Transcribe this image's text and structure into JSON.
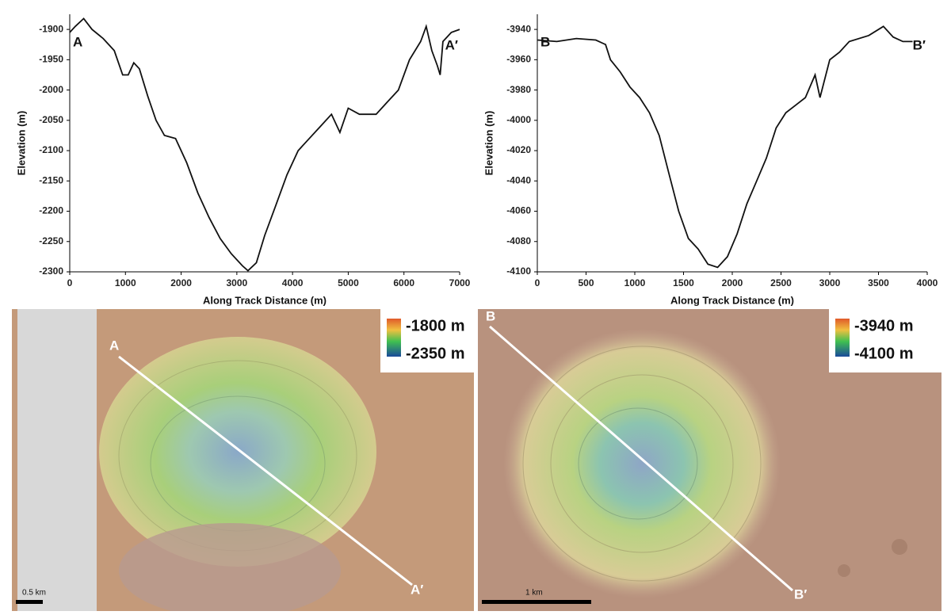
{
  "chart_data": [
    {
      "type": "line",
      "x_label": "Along Track Distance (m)",
      "y_label": "Elevation (m)",
      "annotations": [
        "A",
        "A′"
      ],
      "xlim": [
        0,
        7000
      ],
      "xticks": [
        0,
        1000,
        2000,
        3000,
        4000,
        5000,
        6000,
        7000
      ],
      "ylim": [
        -2300,
        -1875
      ],
      "yticks": [
        -2300,
        -2250,
        -2200,
        -2150,
        -2100,
        -2050,
        -2000,
        -1950,
        -1900
      ],
      "x": [
        0,
        100,
        250,
        400,
        600,
        800,
        950,
        1050,
        1150,
        1250,
        1400,
        1550,
        1700,
        1900,
        2100,
        2300,
        2500,
        2700,
        2900,
        3100,
        3200,
        3350,
        3500,
        3700,
        3900,
        4100,
        4300,
        4500,
        4700,
        4850,
        5000,
        5200,
        5500,
        5700,
        5900,
        6100,
        6300,
        6400,
        6500,
        6600,
        6650,
        6700,
        6850,
        7000
      ],
      "series": [
        {
          "color": "#111111",
          "values": [
            -1905,
            -1895,
            -1882,
            -1900,
            -1915,
            -1935,
            -1975,
            -1975,
            -1955,
            -1965,
            -2010,
            -2050,
            -2075,
            -2080,
            -2120,
            -2170,
            -2210,
            -2245,
            -2270,
            -2290,
            -2298,
            -2285,
            -2240,
            -2190,
            -2140,
            -2100,
            -2080,
            -2060,
            -2040,
            -2070,
            -2030,
            -2040,
            -2040,
            -2020,
            -2000,
            -1950,
            -1920,
            -1895,
            -1935,
            -1960,
            -1975,
            -1920,
            -1905,
            -1900
          ]
        }
      ]
    },
    {
      "type": "line",
      "x_label": "Along Track Distance (m)",
      "y_label": "Elevation (m)",
      "annotations": [
        "B",
        "B′"
      ],
      "xlim": [
        0,
        4000
      ],
      "xticks": [
        0,
        500,
        1000,
        1500,
        2000,
        2500,
        3000,
        3500,
        4000
      ],
      "ylim": [
        -4100,
        -3930
      ],
      "yticks": [
        -4100,
        -4080,
        -4060,
        -4040,
        -4020,
        -4000,
        -3980,
        -3960,
        -3940
      ],
      "x": [
        0,
        200,
        400,
        600,
        700,
        750,
        850,
        950,
        1050,
        1150,
        1250,
        1350,
        1450,
        1550,
        1650,
        1750,
        1850,
        1950,
        2050,
        2150,
        2250,
        2350,
        2450,
        2550,
        2650,
        2750,
        2850,
        2900,
        3000,
        3100,
        3200,
        3400,
        3550,
        3650,
        3750,
        3850
      ],
      "series": [
        {
          "color": "#111111",
          "values": [
            -3947,
            -3948,
            -3946,
            -3947,
            -3950,
            -3960,
            -3968,
            -3978,
            -3985,
            -3995,
            -4010,
            -4035,
            -4060,
            -4078,
            -4085,
            -4095,
            -4097,
            -4090,
            -4075,
            -4055,
            -4040,
            -4025,
            -4005,
            -3995,
            -3990,
            -3985,
            -3970,
            -3985,
            -3960,
            -3955,
            -3948,
            -3944,
            -3938,
            -3945,
            -3948,
            -3948
          ]
        }
      ]
    }
  ],
  "maps": [
    {
      "start": "A",
      "end": "A′",
      "legend_high": "-1800 m",
      "legend_low": "-2350 m",
      "scale": "0.5 km"
    },
    {
      "start": "B",
      "end": "B′",
      "legend_high": "-3940 m",
      "legend_low": "-4100 m",
      "scale": "1 km"
    }
  ]
}
